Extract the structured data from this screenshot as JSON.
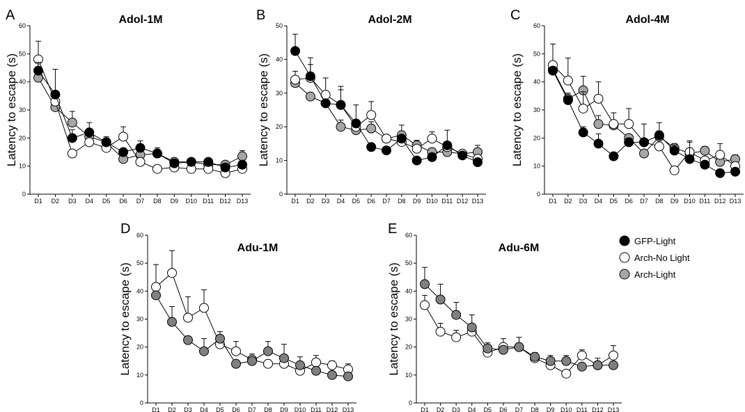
{
  "legend": {
    "entries": [
      {
        "label": "GFP-Light",
        "fill": "#000000"
      },
      {
        "label": "Arch-No Light",
        "fill": "#ffffff"
      },
      {
        "label": "Arch-Light",
        "fill": "#a6a6a6"
      }
    ]
  },
  "colors": {
    "gfp_light": "#000000",
    "arch_no_light": "#ffffff",
    "arch_light": "#a6a6a6",
    "adult_arch_light": "#808080"
  },
  "chart_data": [
    {
      "letter": "A",
      "title": "Adol-1M",
      "type": "line",
      "ylabel": "Latency to escape (s)",
      "ylim": [
        0,
        60
      ],
      "yticks": [
        0,
        10,
        20,
        30,
        40,
        50,
        60
      ],
      "categories": [
        "D1",
        "D2",
        "D3",
        "D4",
        "D5",
        "D6",
        "D7",
        "D8",
        "D9",
        "D10",
        "D11",
        "D12",
        "D13"
      ],
      "series": [
        {
          "name": "Arch-Light",
          "fill": "#a6a6a6",
          "values": [
            41.5,
            31,
            25.5,
            20.5,
            18.5,
            12.5,
            14,
            14.5,
            11.5,
            11.5,
            10.5,
            10.5,
            13.5
          ],
          "err": [
            0,
            0,
            4,
            0,
            1.5,
            0,
            0,
            1,
            0.5,
            0.5,
            0.5,
            0.5,
            2
          ]
        },
        {
          "name": "Arch-No Light",
          "fill": "#ffffff",
          "values": [
            48,
            33,
            14.5,
            18.5,
            16.5,
            20.5,
            11.5,
            9,
            9.5,
            9,
            9,
            7.5,
            9
          ],
          "err": [
            6.5,
            0,
            0,
            0,
            0,
            3.5,
            0,
            0,
            0,
            0,
            0,
            0,
            0
          ]
        },
        {
          "name": "GFP-Light",
          "fill": "#000000",
          "values": [
            44,
            35.5,
            20,
            22,
            18.5,
            15,
            16.5,
            14.5,
            11,
            11.5,
            11.5,
            9.5,
            10.5
          ],
          "err": [
            3,
            9,
            3,
            3.5,
            2,
            0,
            2.5,
            2,
            1,
            1,
            0.5,
            1,
            1
          ]
        }
      ]
    },
    {
      "letter": "B",
      "title": "Adol-2M",
      "type": "line",
      "ylabel": "Latency to escape (s)",
      "ylim": [
        0,
        50
      ],
      "yticks": [
        0,
        10,
        20,
        30,
        40,
        50
      ],
      "categories": [
        "D1",
        "D2",
        "D3",
        "D4",
        "D5",
        "D6",
        "D7",
        "D8",
        "D9",
        "D10",
        "D11",
        "D12",
        "D13"
      ],
      "series": [
        {
          "name": "Arch-Light",
          "fill": "#a6a6a6",
          "values": [
            33,
            29,
            27,
            20,
            19,
            19.5,
            16.5,
            17.5,
            14.5,
            12.5,
            12.5,
            12,
            12.5
          ],
          "err": [
            0,
            0,
            0,
            2,
            2,
            2,
            0,
            3,
            1.5,
            0,
            2,
            1,
            2
          ]
        },
        {
          "name": "Arch-No Light",
          "fill": "#ffffff",
          "values": [
            34,
            34.5,
            29.5,
            26.5,
            20,
            23.5,
            16.5,
            15.5,
            13.5,
            16.5,
            14,
            12,
            10.5
          ],
          "err": [
            2.5,
            4,
            5,
            5.5,
            6.5,
            4,
            0,
            0,
            0,
            2,
            0,
            0,
            0
          ]
        },
        {
          "name": "GFP-Light",
          "fill": "#000000",
          "values": [
            42.5,
            35,
            27,
            26.5,
            21,
            14,
            13,
            16.5,
            10,
            11,
            14.5,
            11.5,
            9.5
          ],
          "err": [
            5,
            5.5,
            0,
            4.5,
            0,
            0,
            0,
            0,
            0,
            0,
            4.5,
            0,
            0
          ]
        }
      ]
    },
    {
      "letter": "C",
      "title": "Adol-4M",
      "type": "line",
      "ylabel": "Latency to escape (s)",
      "ylim": [
        0,
        60
      ],
      "yticks": [
        0,
        10,
        20,
        30,
        40,
        50,
        60
      ],
      "categories": [
        "D1",
        "D2",
        "D3",
        "D4",
        "D5",
        "D6",
        "D7",
        "D8",
        "D9",
        "D10",
        "D11",
        "D12",
        "D13"
      ],
      "series": [
        {
          "name": "Arch-Light",
          "fill": "#a6a6a6",
          "values": [
            44.5,
            34,
            37,
            25,
            24.5,
            20,
            14.5,
            20.5,
            16.5,
            14.5,
            15.5,
            11.5,
            12.5
          ],
          "err": [
            0,
            2,
            5,
            3,
            4.5,
            0,
            0,
            2,
            1.5,
            0,
            1.5,
            2,
            1.5
          ]
        },
        {
          "name": "Arch-No Light",
          "fill": "#ffffff",
          "values": [
            46,
            40.5,
            30.5,
            34,
            25,
            25,
            18.5,
            17,
            8.5,
            15,
            12,
            14,
            10
          ],
          "err": [
            7.5,
            8,
            6,
            6,
            0,
            5.5,
            0,
            0,
            0,
            4,
            0,
            4,
            0
          ]
        },
        {
          "name": "GFP-Light",
          "fill": "#000000",
          "values": [
            44,
            33.5,
            22,
            18,
            13.5,
            18.5,
            18.5,
            21,
            15.5,
            12.5,
            10.5,
            7.5,
            8
          ],
          "err": [
            0,
            0,
            2,
            3.5,
            0,
            1.5,
            6.5,
            4.5,
            2,
            6,
            1,
            1,
            0
          ]
        }
      ]
    },
    {
      "letter": "D",
      "title": "Adu-1M",
      "type": "line",
      "ylabel": "Latency to escape (s)",
      "ylim": [
        0,
        60
      ],
      "yticks": [
        0,
        10,
        20,
        30,
        40,
        50,
        60
      ],
      "categories": [
        "D1",
        "D2",
        "D3",
        "D4",
        "D5",
        "D6",
        "D7",
        "D8",
        "D9",
        "D10",
        "D11",
        "D12",
        "D13"
      ],
      "series": [
        {
          "name": "Arch-No Light",
          "fill": "#ffffff",
          "values": [
            41.5,
            46.5,
            30.5,
            34,
            21,
            18.5,
            15.5,
            14,
            14,
            11.5,
            14.5,
            13.5,
            12
          ],
          "err": [
            8,
            8,
            7.5,
            6.5,
            0,
            3.5,
            2,
            0,
            0,
            0,
            2.5,
            1.5,
            2
          ]
        },
        {
          "name": "Arch-Light",
          "fill": "#808080",
          "values": [
            38.5,
            29,
            22.5,
            18.5,
            23,
            14,
            15,
            18.5,
            16,
            13.5,
            11.5,
            10,
            9.5
          ],
          "err": [
            0,
            5.5,
            0,
            4.5,
            2.5,
            0,
            0,
            3.5,
            5,
            3,
            0,
            0,
            0
          ]
        }
      ]
    },
    {
      "letter": "E",
      "title": "Adu-6M",
      "type": "line",
      "ylabel": "Latency to escape (s)",
      "ylim": [
        0,
        60
      ],
      "yticks": [
        0,
        10,
        20,
        30,
        40,
        50,
        60
      ],
      "categories": [
        "D1",
        "D2",
        "D3",
        "D4",
        "D5",
        "D6",
        "D7",
        "D8",
        "D9",
        "D10",
        "D11",
        "D12",
        "D13"
      ],
      "series": [
        {
          "name": "Arch-No Light",
          "fill": "#ffffff",
          "values": [
            35,
            25.5,
            23.5,
            25.5,
            18,
            20,
            20,
            16,
            13.5,
            10.5,
            17,
            13.5,
            17
          ],
          "err": [
            3.5,
            3,
            2.5,
            0,
            0,
            3,
            3.5,
            0,
            0,
            0,
            2,
            0,
            3.5
          ]
        },
        {
          "name": "Arch-Light",
          "fill": "#808080",
          "values": [
            42.5,
            37,
            31.5,
            27,
            19.5,
            19,
            20,
            16.5,
            15,
            15,
            13,
            13.5,
            13.5
          ],
          "err": [
            6,
            5.5,
            4.5,
            4.5,
            2,
            0,
            0,
            1.5,
            2,
            2,
            0,
            2.5,
            0
          ]
        }
      ]
    }
  ]
}
